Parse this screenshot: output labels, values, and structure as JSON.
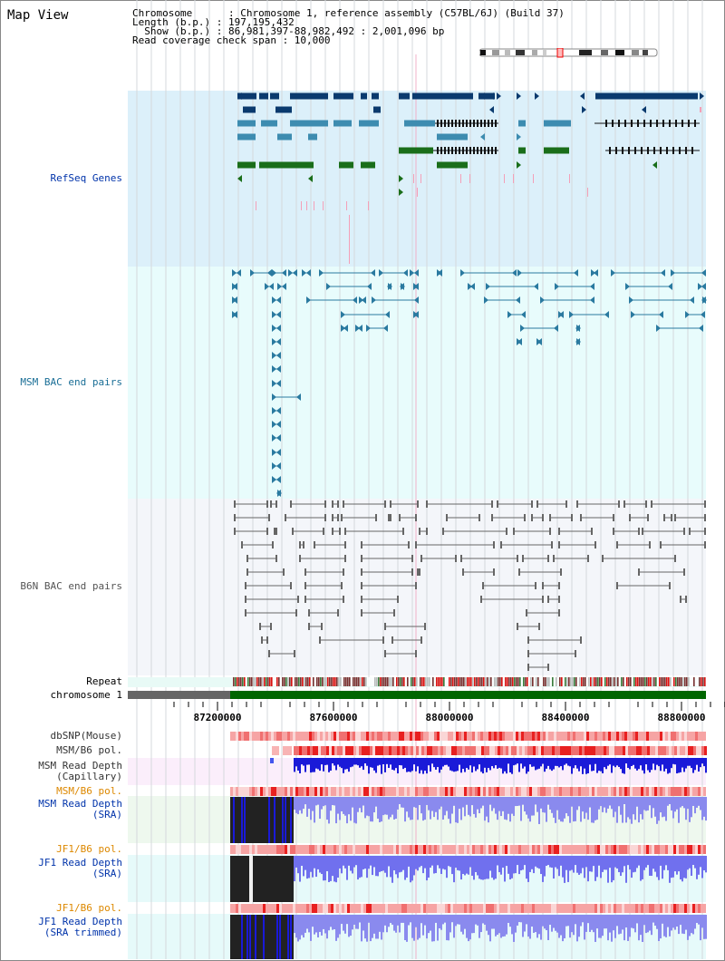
{
  "header": {
    "map_view_label": "Map View",
    "chromosome_line": "Chromosome      : Chromosome 1, reference assembly (C57BL/6J) (Build 37)",
    "length_line": "Length (b.p.) : 197,195,432",
    "show_line": "  Show (b.p.) : 86,981,397-88,982,492 : 2,001,096 bp",
    "coverage_line": "Read coverage check span : 10,000"
  },
  "tracks": {
    "refseq": "RefSeq Genes",
    "msm_bac": "MSM BAC end pairs",
    "b6n_bac": "B6N BAC end pairs",
    "repeat": "Repeat",
    "chromosome": "chromosome 1",
    "dbsnp": "dbSNP(Mouse)",
    "msm_b6_pol_1": "MSM/B6 pol.",
    "msm_depth_cap": "MSM Read Depth\n(Capillary)",
    "msm_b6_pol_2": "MSM/B6 pol.",
    "msm_depth_sra": "MSM Read Depth\n(SRA)",
    "jf1_b6_pol_1": "JF1/B6 pol.",
    "jf1_depth_sra": "JF1 Read Depth\n(SRA)",
    "jf1_b6_pol_2": "JF1/B6 pol.",
    "jf1_depth_trim": "JF1 Read Depth\n(SRA trimmed)"
  },
  "axis": {
    "ticks": [
      "87200000",
      "87600000",
      "88000000",
      "88400000",
      "88800000"
    ]
  },
  "colors": {
    "refseq_bg": "#dcf0fa",
    "msm_bg": "#e8fcfc",
    "b6n_bg": "#f4f6fa",
    "refseq_dark": "#0a3a6e",
    "refseq_teal": "#3d8cb0",
    "refseq_green": "#1a6e1a",
    "msm_feature": "#2a7aa0",
    "b6n_feature": "#666666",
    "chrom_green": "#006600",
    "chrom_grey": "#666666",
    "label_blue": "#0033aa",
    "label_orange": "#dd8800",
    "label_dark": "#333333",
    "depth_blue": "#1a1ad8",
    "depth_light": "#8a8aee"
  }
}
